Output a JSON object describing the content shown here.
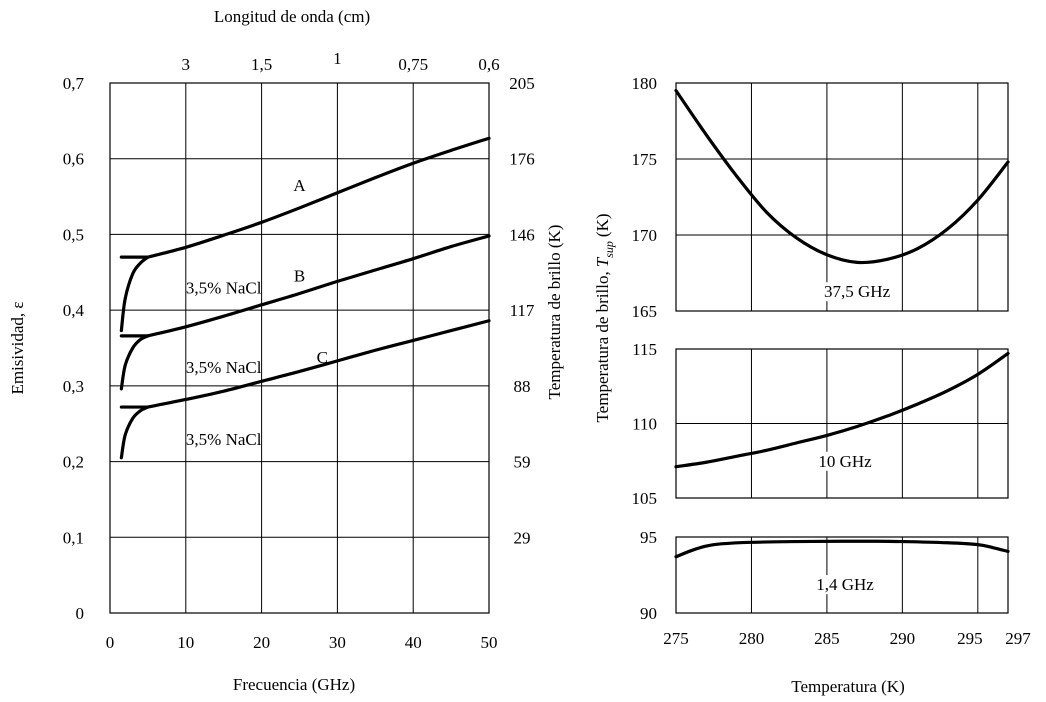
{
  "chart_data": [
    {
      "type": "line",
      "xlabel": "Frecuencia (GHz)",
      "ylabel": "Emisividad, ε",
      "ylabel_right": "Temperatura de brillo (K)",
      "xlabel_top": "Longitud de onda (cm)",
      "xlim": [
        0,
        50
      ],
      "ylim": [
        0,
        0.7
      ],
      "x_ticks": [
        "0",
        "10",
        "20",
        "30",
        "40",
        "50"
      ],
      "x_tick_values": [
        0,
        10,
        20,
        30,
        40,
        50
      ],
      "y_ticks": [
        "0",
        "0,1",
        "0,2",
        "0,3",
        "0,4",
        "0,5",
        "0,6",
        "0,7"
      ],
      "y_tick_values": [
        0,
        0.1,
        0.2,
        0.3,
        0.4,
        0.5,
        0.6,
        0.7
      ],
      "y_right_ticks": [
        "29",
        "59",
        "88",
        "117",
        "146",
        "176",
        "205"
      ],
      "y_right_tick_values": [
        0.1,
        0.2,
        0.3,
        0.4,
        0.5,
        0.6,
        0.7
      ],
      "top_ticks": [
        "3",
        "1,5",
        "1",
        "0,75",
        "0,6"
      ],
      "top_tick_values": [
        10,
        20,
        30,
        40,
        50
      ],
      "grid": true,
      "series": [
        {
          "name": "A",
          "x": [
            5,
            10,
            15,
            20,
            25,
            30,
            35,
            40,
            45,
            50
          ],
          "y": [
            0.47,
            0.483,
            0.499,
            0.516,
            0.535,
            0.555,
            0.575,
            0.594,
            0.611,
            0.627
          ],
          "label_at": [
            25,
            0.565
          ]
        },
        {
          "name": "B",
          "x": [
            5,
            10,
            15,
            20,
            25,
            30,
            35,
            40,
            45,
            50
          ],
          "y": [
            0.366,
            0.378,
            0.392,
            0.407,
            0.422,
            0.438,
            0.453,
            0.468,
            0.484,
            0.498
          ],
          "label_at": [
            25,
            0.446
          ]
        },
        {
          "name": "C",
          "x": [
            5,
            10,
            15,
            20,
            25,
            30,
            35,
            40,
            45,
            50
          ],
          "y": [
            0.272,
            0.282,
            0.293,
            0.306,
            0.319,
            0.333,
            0.347,
            0.36,
            0.373,
            0.386
          ],
          "label_at": [
            28,
            0.338
          ]
        },
        {
          "name": "3,5% NaCl",
          "x": [
            1.5,
            2,
            3,
            4,
            5
          ],
          "y": [
            0.373,
            0.415,
            0.448,
            0.462,
            0.47
          ],
          "label_at": [
            15,
            0.43
          ]
        },
        {
          "name": "3,5% NaCl",
          "x": [
            1.5,
            2,
            3,
            4,
            5
          ],
          "y": [
            0.296,
            0.327,
            0.35,
            0.361,
            0.366
          ],
          "label_at": [
            15,
            0.325
          ]
        },
        {
          "name": "3,5% NaCl",
          "x": [
            1.5,
            2,
            3,
            4,
            5
          ],
          "y": [
            0.205,
            0.235,
            0.257,
            0.267,
            0.272
          ],
          "label_at": [
            15,
            0.23
          ]
        }
      ],
      "flat_segments": [
        {
          "x": [
            1.5,
            5
          ],
          "y": 0.47
        },
        {
          "x": [
            1.5,
            5
          ],
          "y": 0.366
        },
        {
          "x": [
            1.5,
            5
          ],
          "y": 0.272
        }
      ]
    },
    {
      "type": "line",
      "xlabel": "Temperatura (K)",
      "ylabel": "Temperatura de brillo, T_sup (K)",
      "ylabel_main": "Temperatura de brillo,",
      "ylabel_italic": "T",
      "ylabel_sub": "sup",
      "ylabel_unit": "(K)",
      "xlim": [
        275,
        297
      ],
      "x_ticks": [
        "275",
        "280",
        "285",
        "290",
        "295",
        "297"
      ],
      "x_tick_values": [
        275,
        280,
        285,
        290,
        295,
        297
      ],
      "grid": true,
      "panels": [
        {
          "ylim": [
            165,
            180
          ],
          "y_ticks": [
            "165",
            "170",
            "175",
            "180"
          ],
          "y_tick_values": [
            165,
            170,
            175,
            180
          ],
          "series": [
            {
              "name": "37,5 GHz",
              "x": [
                275,
                277,
                279,
                281,
                283,
                285,
                287,
                289,
                291,
                293,
                295,
                297
              ],
              "y": [
                179.5,
                176.6,
                173.9,
                171.5,
                169.8,
                168.7,
                168.2,
                168.4,
                169.1,
                170.4,
                172.3,
                174.8
              ],
              "label_at": [
                287,
                166.3
              ]
            }
          ]
        },
        {
          "ylim": [
            105,
            115
          ],
          "y_ticks": [
            "105",
            "110",
            "115"
          ],
          "y_tick_values": [
            105,
            110,
            115
          ],
          "series": [
            {
              "name": "10 GHz",
              "x": [
                275,
                277,
                279,
                281,
                283,
                285,
                287,
                289,
                291,
                293,
                295,
                297
              ],
              "y": [
                107.1,
                107.4,
                107.8,
                108.2,
                108.7,
                109.2,
                109.8,
                110.5,
                111.3,
                112.2,
                113.3,
                114.7
              ],
              "label_at": [
                286.2,
                107.5
              ]
            }
          ]
        },
        {
          "ylim": [
            90,
            95
          ],
          "y_ticks": [
            "90",
            "95"
          ],
          "y_tick_values": [
            90,
            95
          ],
          "series": [
            {
              "name": "1,4 GHz",
              "x": [
                275,
                276,
                277,
                278,
                280,
                283,
                286,
                288,
                290,
                293,
                295,
                296,
                297
              ],
              "y": [
                93.7,
                94.1,
                94.4,
                94.55,
                94.65,
                94.7,
                94.72,
                94.72,
                94.7,
                94.62,
                94.5,
                94.3,
                94.05
              ],
              "label_at": [
                286.2,
                91.9
              ]
            }
          ]
        }
      ]
    }
  ]
}
